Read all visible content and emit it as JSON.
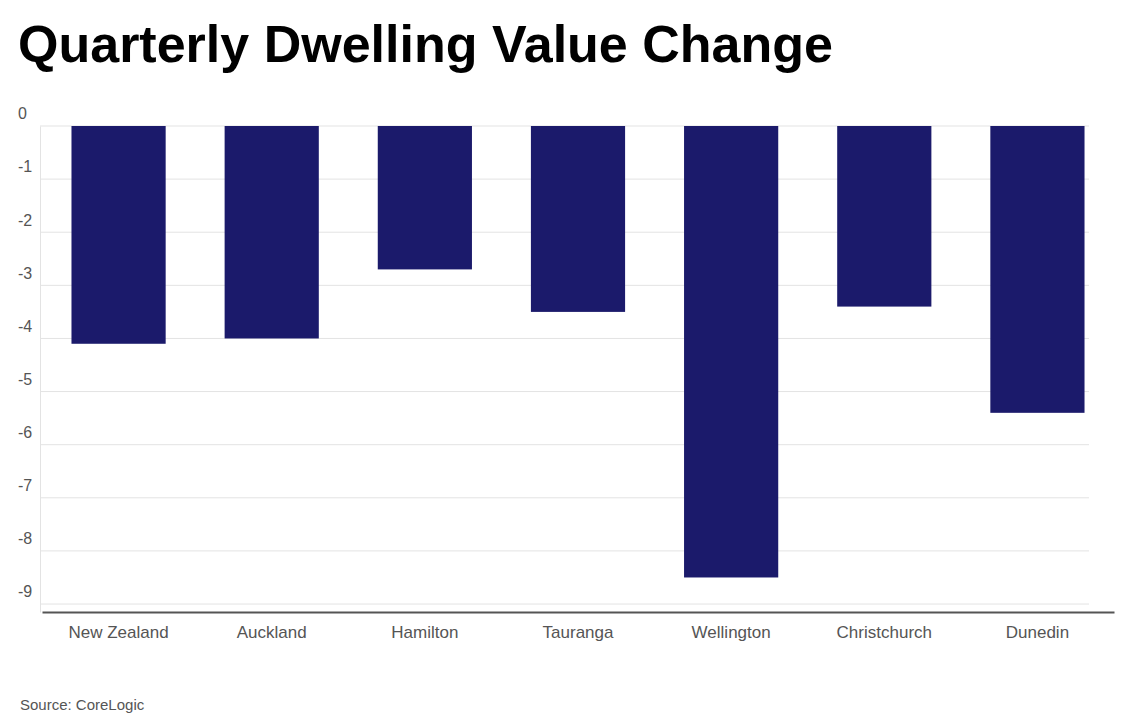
{
  "chart_data": {
    "type": "bar",
    "title": "Quarterly Dwelling Value Change",
    "categories": [
      "New Zealand",
      "Auckland",
      "Hamilton",
      "Tauranga",
      "Wellington",
      "Christchurch",
      "Dunedin"
    ],
    "values": [
      -4.1,
      -4.0,
      -2.7,
      -3.5,
      -8.5,
      -3.4,
      -5.4
    ],
    "color": "#1b1a6b",
    "ylim": [
      -9.15,
      0
    ],
    "yticks": [
      0,
      -1,
      -2,
      -3,
      -4,
      -5,
      -6,
      -7,
      -8,
      -9
    ],
    "grid": true,
    "source": "Source: CoreLogic"
  }
}
